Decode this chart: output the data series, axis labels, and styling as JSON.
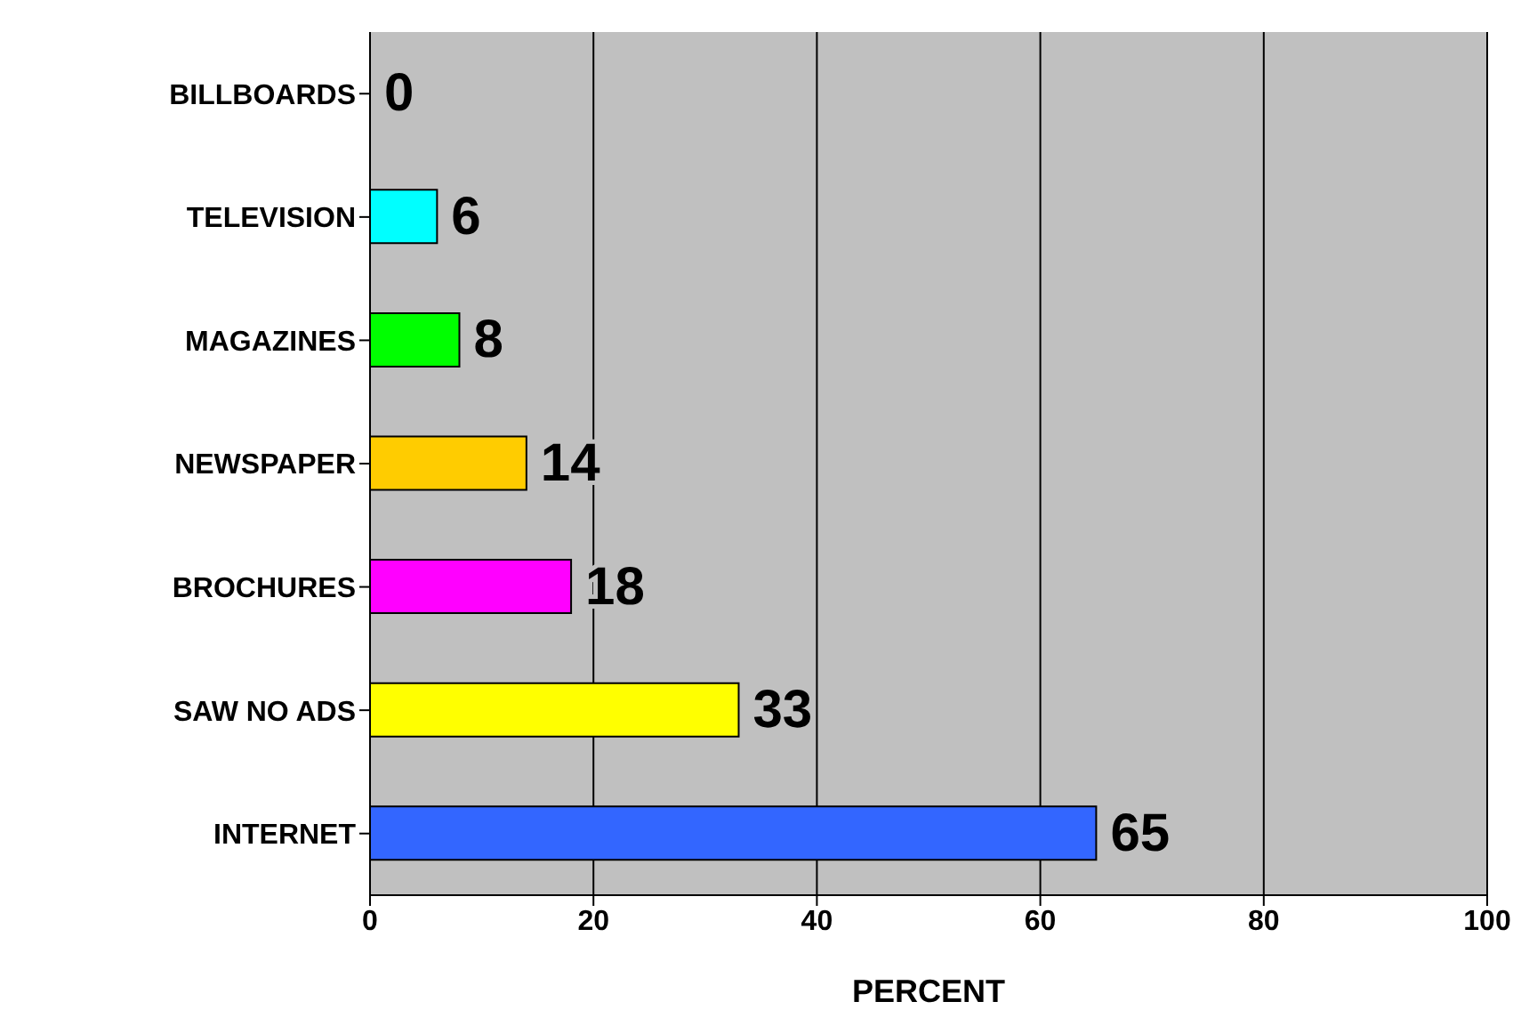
{
  "chart_data": {
    "type": "bar",
    "orientation": "horizontal",
    "xlabel": "PERCENT",
    "categories": [
      "BILLBOARDS",
      "TELEVISION",
      "MAGAZINES",
      "NEWSPAPER",
      "BROCHURES",
      "SAW NO ADS",
      "INTERNET"
    ],
    "values": [
      0,
      6,
      8,
      14,
      18,
      33,
      65
    ],
    "colors": [
      "#993366",
      "#00ffff",
      "#00ff00",
      "#ffcc00",
      "#ff00ff",
      "#ffff00",
      "#3366ff"
    ],
    "xlim": [
      0,
      100
    ],
    "xticks": [
      0,
      20,
      40,
      60,
      80,
      100
    ],
    "grid": "x",
    "data_labels": true
  }
}
